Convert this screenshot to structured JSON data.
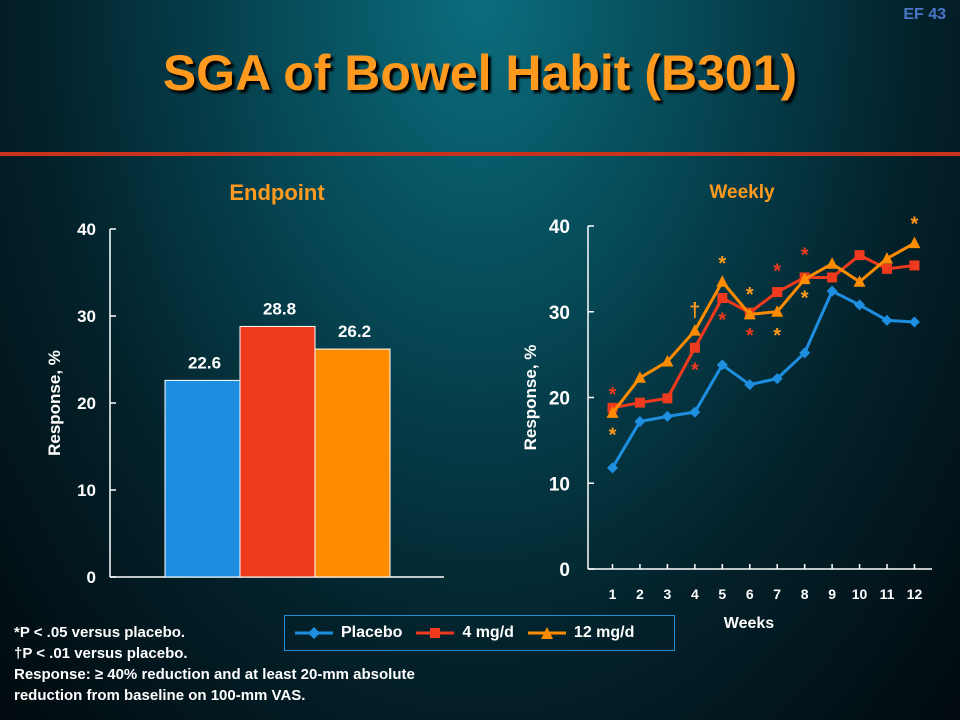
{
  "slide_id": "EF 43",
  "title": "SGA of Bowel Habit (B301)",
  "colors": {
    "title": "#ff9a1e",
    "placebo": "#1e8fe0",
    "mg4": "#ef3a1e",
    "mg12": "#ff8c00",
    "sig": "#ff9a1e",
    "sig_red": "#ef3a1e"
  },
  "chart_data": [
    {
      "type": "bar",
      "title": "Endpoint",
      "ylabel": "Response, %",
      "ylim": [
        0,
        40
      ],
      "yticks": [
        "0",
        "10",
        "20",
        "30",
        "40"
      ],
      "categories": [
        "Placebo",
        "4 mg/d",
        "12 mg/d"
      ],
      "values": [
        22.6,
        28.8,
        26.2
      ],
      "value_labels": [
        "22.6",
        "28.8",
        "26.2"
      ]
    },
    {
      "type": "line",
      "title": "Weekly",
      "xlabel": "Weeks",
      "ylabel": "Response, %",
      "ylim": [
        0,
        40
      ],
      "yticks": [
        "0",
        "10",
        "20",
        "30",
        "40"
      ],
      "x": [
        1,
        2,
        3,
        4,
        5,
        6,
        7,
        8,
        9,
        10,
        11,
        12
      ],
      "series": [
        {
          "name": "Placebo",
          "marker": "diamond",
          "values": [
            11.8,
            17.2,
            17.8,
            18.3,
            23.8,
            21.5,
            22.2,
            25.2,
            32.4,
            30.8,
            29.0,
            28.8
          ]
        },
        {
          "name": "4 mg/d",
          "marker": "square",
          "values": [
            18.8,
            19.4,
            19.9,
            25.8,
            31.6,
            29.9,
            32.3,
            34.0,
            34.0,
            36.6,
            35.0,
            35.4
          ]
        },
        {
          "name": "12 mg/d",
          "marker": "triangle",
          "values": [
            18.2,
            22.3,
            24.2,
            27.8,
            33.5,
            29.7,
            30.0,
            33.8,
            35.6,
            33.5,
            36.2,
            38.0
          ]
        }
      ],
      "annotations": [
        {
          "text": "*",
          "x": 1,
          "y": 20.5,
          "color": "sig_red"
        },
        {
          "text": "*",
          "x": 1,
          "y": 15.8,
          "color": "sig"
        },
        {
          "text": "*",
          "x": 4,
          "y": 23.4,
          "color": "sig_red"
        },
        {
          "text": "†",
          "x": 4,
          "y": 30.3,
          "color": "sig"
        },
        {
          "text": "*",
          "x": 5,
          "y": 35.8,
          "color": "sig"
        },
        {
          "text": "*",
          "x": 5,
          "y": 29.2,
          "color": "sig_red"
        },
        {
          "text": "*",
          "x": 6,
          "y": 32.2,
          "color": "sig"
        },
        {
          "text": "*",
          "x": 6,
          "y": 27.4,
          "color": "sig_red"
        },
        {
          "text": "*",
          "x": 7,
          "y": 34.9,
          "color": "sig_red"
        },
        {
          "text": "*",
          "x": 7,
          "y": 27.4,
          "color": "sig"
        },
        {
          "text": "*",
          "x": 8,
          "y": 36.8,
          "color": "sig_red"
        },
        {
          "text": "*",
          "x": 8,
          "y": 31.8,
          "color": "sig"
        },
        {
          "text": "*",
          "x": 12,
          "y": 40.4,
          "color": "sig"
        }
      ]
    }
  ],
  "legend": [
    {
      "label": "Placebo",
      "color": "#1e8fe0",
      "marker": "diamond"
    },
    {
      "label": "4 mg/d",
      "color": "#ef3a1e",
      "marker": "square"
    },
    {
      "label": "12 mg/d",
      "color": "#ff8c00",
      "marker": "triangle"
    }
  ],
  "footnotes": {
    "line1": "*P < .05 versus placebo.",
    "line2": "†P < .01 versus placebo.",
    "line3": "Response: ≥ 40% reduction and at least 20-mm absolute",
    "line4": "reduction from baseline on 100-mm VAS."
  }
}
